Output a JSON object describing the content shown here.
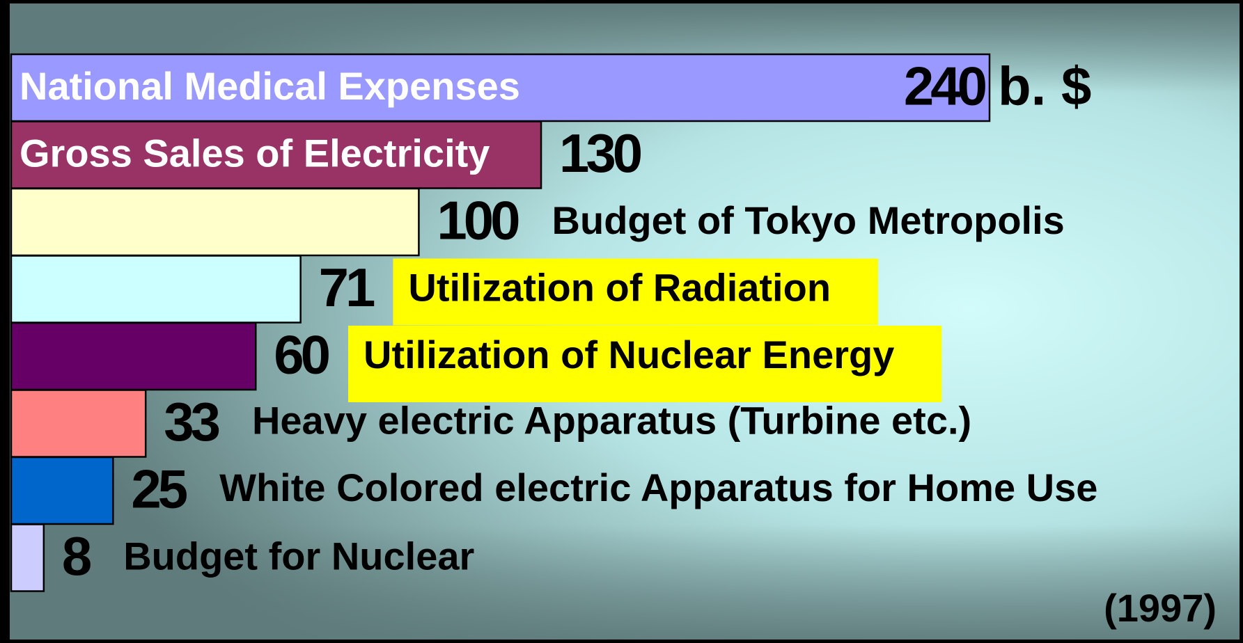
{
  "chart_data": {
    "type": "bar",
    "orientation": "horizontal",
    "categories": [
      "National Medical Expenses",
      "Gross Sales of Electricity",
      "Budget of Tokyo Metropolis",
      "Utilization of Radiation",
      "Utilization of Nuclear Energy",
      "Heavy electric Apparatus (Turbine etc.)",
      "White Colored electric Apparatus for Home Use",
      "Budget for Nuclear"
    ],
    "values": [
      240,
      130,
      100,
      71,
      60,
      33,
      25,
      8
    ],
    "colors": [
      "#9999ff",
      "#993366",
      "#ffffcc",
      "#ccffff",
      "#660066",
      "#ff8080",
      "#0066cc",
      "#ccccff"
    ],
    "label_colors": [
      "#ffffff",
      "#ffffff",
      "#000000",
      "#000000",
      "#000000",
      "#000000",
      "#000000",
      "#000000"
    ],
    "label_backgrounds": [
      null,
      null,
      null,
      "#ffff00",
      "#ffff00",
      null,
      null,
      null
    ],
    "unit": "b. $",
    "note": "(1997)"
  }
}
